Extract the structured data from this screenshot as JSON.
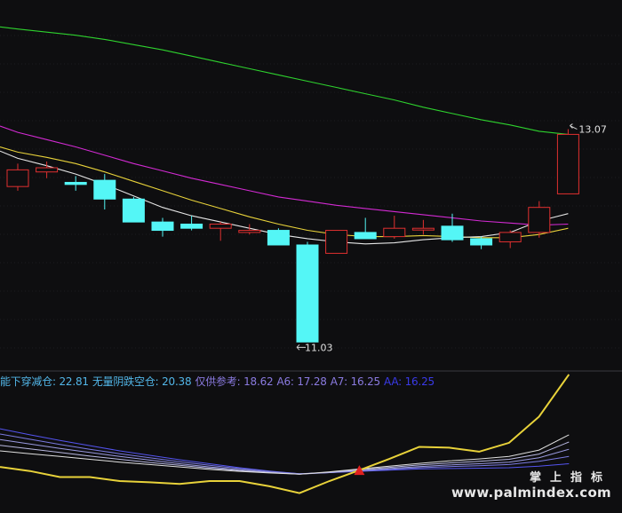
{
  "colors": {
    "background": "#0e0e10",
    "up_candle": "#e03030",
    "down_candle": "#54f6f6",
    "ma_white": "#e6e6e6",
    "ma_yellow": "#e8d23a",
    "ma_magenta": "#d22ad2",
    "ma_green": "#2ed22e",
    "grid": "#2a2a2e",
    "signal": "#e02020"
  },
  "chart_data": {
    "type": "candlestick",
    "candles": [
      {
        "o": 12.52,
        "c": 12.68,
        "h": 12.74,
        "l": 12.48
      },
      {
        "o": 12.66,
        "c": 12.7,
        "h": 12.76,
        "l": 12.6
      },
      {
        "o": 12.56,
        "c": 12.54,
        "h": 12.62,
        "l": 12.48
      },
      {
        "o": 12.58,
        "c": 12.4,
        "h": 12.64,
        "l": 12.3
      },
      {
        "o": 12.4,
        "c": 12.18,
        "h": 12.42,
        "l": 12.18
      },
      {
        "o": 12.18,
        "c": 12.1,
        "h": 12.22,
        "l": 12.04
      },
      {
        "o": 12.16,
        "c": 12.12,
        "h": 12.24,
        "l": 12.1
      },
      {
        "o": 12.12,
        "c": 12.16,
        "h": 12.18,
        "l": 12.0
      },
      {
        "o": 12.08,
        "c": 12.1,
        "h": 12.16,
        "l": 12.06
      },
      {
        "o": 12.1,
        "c": 11.96,
        "h": 12.12,
        "l": 11.96
      },
      {
        "o": 11.96,
        "c": 11.03,
        "h": 11.99,
        "l": 11.03
      },
      {
        "o": 11.88,
        "c": 12.1,
        "h": 12.1,
        "l": 11.88
      },
      {
        "o": 12.08,
        "c": 12.02,
        "h": 12.22,
        "l": 12.02
      },
      {
        "o": 12.04,
        "c": 12.12,
        "h": 12.24,
        "l": 12.02
      },
      {
        "o": 12.12,
        "c": 12.12,
        "h": 12.2,
        "l": 12.06
      },
      {
        "o": 12.14,
        "c": 12.01,
        "h": 12.26,
        "l": 11.99
      },
      {
        "o": 12.02,
        "c": 11.96,
        "h": 12.04,
        "l": 11.92
      },
      {
        "o": 11.99,
        "c": 12.08,
        "h": 12.1,
        "l": 11.93
      },
      {
        "o": 12.08,
        "c": 12.32,
        "h": 12.38,
        "l": 12.03
      },
      {
        "o": 12.45,
        "c": 13.02,
        "h": 13.07,
        "l": 12.45
      }
    ],
    "ma_white": [
      12.86,
      12.79,
      12.72,
      12.64,
      12.54,
      12.43,
      12.32,
      12.24,
      12.18,
      12.12,
      12.06,
      12.02,
      11.99,
      11.97,
      11.98,
      12.01,
      12.03,
      12.04,
      12.08,
      12.19,
      12.26
    ],
    "ma_yellow": [
      12.9,
      12.85,
      12.8,
      12.74,
      12.66,
      12.57,
      12.48,
      12.39,
      12.31,
      12.23,
      12.16,
      12.1,
      12.06,
      12.04,
      12.04,
      12.05,
      12.04,
      12.03,
      12.03,
      12.06,
      12.12
    ],
    "ma_magenta": [
      13.1,
      13.04,
      12.97,
      12.9,
      12.82,
      12.74,
      12.67,
      12.6,
      12.54,
      12.48,
      12.42,
      12.38,
      12.34,
      12.31,
      12.28,
      12.25,
      12.22,
      12.19,
      12.17,
      12.15,
      12.16
    ],
    "ma_green": [
      14.05,
      14.03,
      14.0,
      13.97,
      13.93,
      13.88,
      13.83,
      13.77,
      13.71,
      13.65,
      13.59,
      13.53,
      13.47,
      13.41,
      13.35,
      13.28,
      13.22,
      13.16,
      13.11,
      13.05,
      13.02
    ],
    "ylim": [
      10.82,
      14.24
    ],
    "annotations": {
      "high_label": "13.07",
      "low_label": "11.03"
    },
    "indicator": {
      "title_items": [
        {
          "text": "能下穿减仓: 22.81",
          "color": "#52b6e8"
        },
        {
          "text": "无量阴跌空仓: 20.38",
          "color": "#52b6e8"
        },
        {
          "text": "仅供参考: 18.62",
          "color": "#8a7ae0"
        },
        {
          "text": "A6: 17.28",
          "color": "#8a7ae0"
        },
        {
          "text": "A7: 16.25",
          "color": "#8a7ae0"
        },
        {
          "text": "AA: 16.25",
          "color": "#3a3ae8"
        }
      ],
      "ylim": [
        0,
        30
      ],
      "yellow": [
        11.0,
        10.0,
        8.5,
        8.5,
        7.5,
        7.2,
        6.8,
        7.5,
        7.5,
        6.2,
        4.5,
        7.5,
        10.2,
        13.0,
        16.0,
        15.8,
        14.8,
        17.0,
        23.5,
        34.0
      ],
      "fan": [
        {
          "color": "#5454f0",
          "v": [
            20.5,
            19.0,
            17.6,
            16.3,
            15.0,
            13.9,
            12.8,
            11.8,
            10.8,
            10.0,
            9.3,
            9.6,
            9.9,
            10.2,
            10.5,
            10.6,
            10.7,
            10.8,
            11.2,
            11.8
          ]
        },
        {
          "color": "#7a7ae0",
          "v": [
            19.2,
            17.9,
            16.6,
            15.4,
            14.3,
            13.3,
            12.3,
            11.4,
            10.6,
            9.9,
            9.3,
            9.6,
            10.0,
            10.4,
            10.8,
            11.1,
            11.3,
            11.6,
            12.4,
            13.6
          ]
        },
        {
          "color": "#9a9ae0",
          "v": [
            17.8,
            16.7,
            15.6,
            14.6,
            13.6,
            12.7,
            11.8,
            11.0,
            10.3,
            9.7,
            9.2,
            9.6,
            10.1,
            10.6,
            11.1,
            11.5,
            11.8,
            12.2,
            13.3,
            15.4
          ]
        },
        {
          "color": "#b8b8e0",
          "v": [
            16.4,
            15.5,
            14.6,
            13.7,
            12.9,
            12.1,
            11.4,
            10.7,
            10.1,
            9.6,
            9.2,
            9.7,
            10.3,
            10.9,
            11.5,
            12.0,
            12.4,
            12.9,
            14.2,
            17.2
          ]
        },
        {
          "color": "#e0e0e0",
          "v": [
            15.0,
            14.3,
            13.6,
            12.9,
            12.2,
            11.6,
            11.0,
            10.4,
            9.9,
            9.5,
            9.2,
            9.8,
            10.5,
            11.2,
            11.9,
            12.5,
            13.0,
            13.6,
            15.2,
            19.0
          ]
        }
      ],
      "signal_index": 12
    }
  },
  "watermark": {
    "cn": "掌上指标",
    "url": "www.palmindex.com"
  }
}
